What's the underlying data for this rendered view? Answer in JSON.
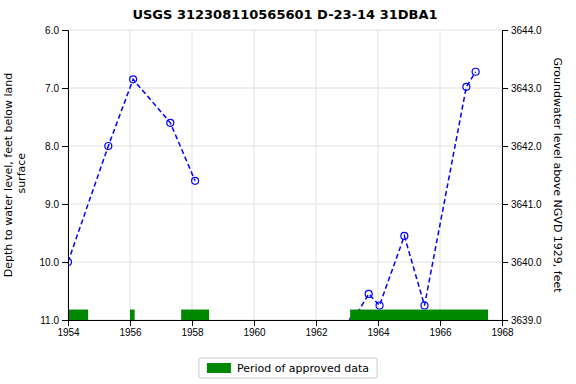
{
  "chart_data": {
    "type": "line",
    "title": "USGS 312308110565601 D-23-14 31DBA1",
    "ylabel": "Depth to water level, feet below land\n surface",
    "y2label": "Groundwater level above NGVD 1929, feet",
    "xlim": [
      1954,
      1968
    ],
    "xticks": [
      1954,
      1956,
      1958,
      1960,
      1962,
      1964,
      1966,
      1968
    ],
    "ylim": [
      11.0,
      6.0
    ],
    "yticks": [
      {
        "value": 6.0,
        "label": "6.0"
      },
      {
        "value": 7.0,
        "label": "7.0"
      },
      {
        "value": 8.0,
        "label": "8.0"
      },
      {
        "value": 9.0,
        "label": "9.0"
      },
      {
        "value": 10.0,
        "label": "10.0"
      },
      {
        "value": 11.0,
        "label": "11.0"
      }
    ],
    "y2lim": [
      3639.0,
      3644.0
    ],
    "y2ticks": [
      {
        "value": 3639.0,
        "label": "3639.0"
      },
      {
        "value": 3640.0,
        "label": "3640.0"
      },
      {
        "value": 3641.0,
        "label": "3641.0"
      },
      {
        "value": 3642.0,
        "label": "3642.0"
      },
      {
        "value": 3643.0,
        "label": "3643.0"
      },
      {
        "value": 3644.0,
        "label": "3644.0"
      }
    ],
    "grid": true,
    "marker": "circle",
    "line_style": "dashed",
    "legend": "bottom",
    "series": [
      {
        "color": "#0000FF",
        "x": [
          1954.0,
          1955.3,
          1956.1,
          1957.3,
          1958.1
        ],
        "values": [
          10.0,
          8.0,
          6.85,
          7.6,
          8.6
        ]
      },
      {
        "color": "#0000FF",
        "x": [
          1963.2,
          1963.7,
          1964.05,
          1964.85,
          1965.5,
          1966.85,
          1967.15
        ],
        "values": [
          11.0,
          10.55,
          10.75,
          9.55,
          10.75,
          6.98,
          6.72
        ]
      }
    ],
    "periods": {
      "name": "Period of approved data",
      "color": "#008800",
      "ranges": [
        [
          1954.0,
          1954.65
        ],
        [
          1956.0,
          1956.15
        ],
        [
          1957.65,
          1958.55
        ],
        [
          1963.1,
          1967.55
        ]
      ],
      "y": 11.0,
      "height": 0.18
    }
  }
}
